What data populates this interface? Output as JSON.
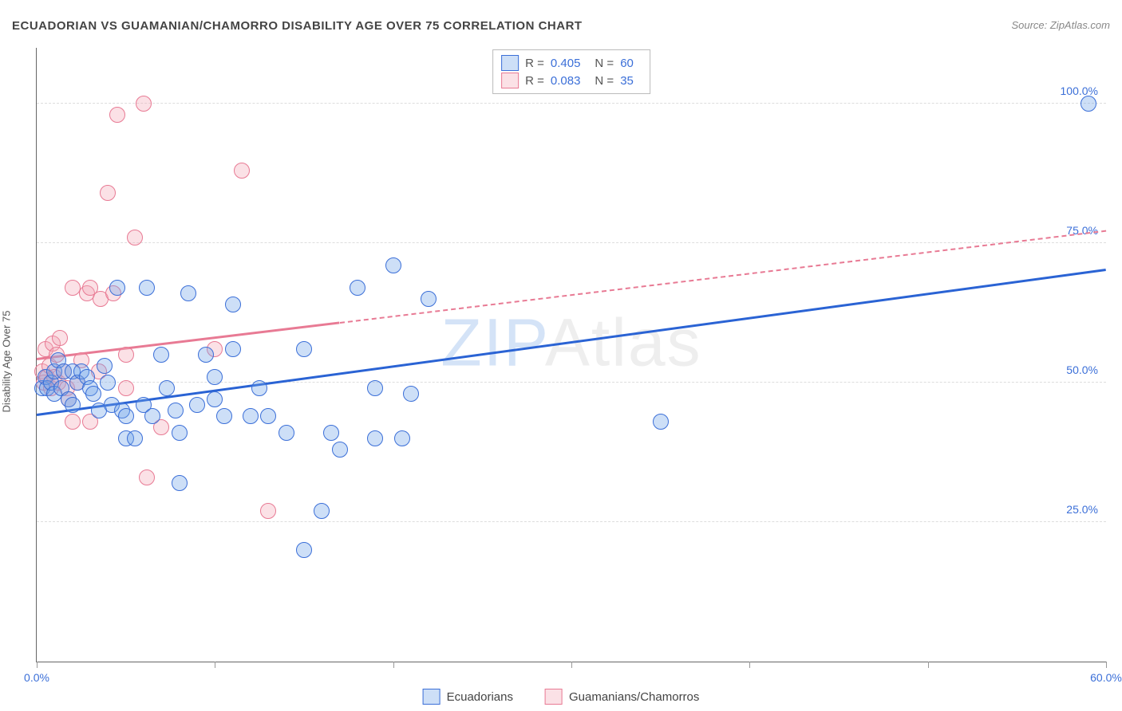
{
  "title": "ECUADORIAN VS GUAMANIAN/CHAMORRO DISABILITY AGE OVER 75 CORRELATION CHART",
  "source_label": "Source: ",
  "source_name": "ZipAtlas.com",
  "y_axis_label": "Disability Age Over 75",
  "watermark_a": "ZIP",
  "watermark_b": "Atlas",
  "chart": {
    "type": "scatter",
    "xlim": [
      0,
      60
    ],
    "ylim": [
      0,
      110
    ],
    "x_ticks": [
      0,
      10,
      20,
      30,
      40,
      50,
      60
    ],
    "x_tick_labels": {
      "0": "0.0%",
      "60": "60.0%"
    },
    "y_gridlines": [
      25,
      50,
      75,
      100
    ],
    "y_tick_labels": {
      "25": "25.0%",
      "50": "50.0%",
      "75": "75.0%",
      "100": "100.0%"
    },
    "background_color": "#ffffff",
    "grid_color": "#dddddd",
    "axis_color": "#666666",
    "tick_label_color": "#3b6fd8",
    "marker_radius": 9,
    "marker_opacity": 0.55,
    "marker_border_opacity": 0.9
  },
  "series": [
    {
      "name": "Ecuadorians",
      "color": "#6fa3e8",
      "border_color": "#3b6fd8",
      "fill_color": "rgba(111,163,232,0.35)",
      "stats": {
        "R": "0.405",
        "N": "60"
      },
      "trend": {
        "x1": 0,
        "y1": 44,
        "x2": 60,
        "y2": 70,
        "solid_until_x": 60,
        "line_color": "#2a63d4"
      },
      "points": [
        [
          0.3,
          49
        ],
        [
          0.5,
          51
        ],
        [
          0.6,
          49
        ],
        [
          0.8,
          50
        ],
        [
          1,
          48
        ],
        [
          1,
          52
        ],
        [
          1.2,
          54
        ],
        [
          1.4,
          49
        ],
        [
          1.5,
          52
        ],
        [
          1.8,
          47
        ],
        [
          2,
          52
        ],
        [
          2,
          46
        ],
        [
          2.3,
          50
        ],
        [
          2.5,
          52
        ],
        [
          2.8,
          51
        ],
        [
          3,
          49
        ],
        [
          3.2,
          48
        ],
        [
          3.5,
          45
        ],
        [
          3.8,
          53
        ],
        [
          4,
          50
        ],
        [
          4.2,
          46
        ],
        [
          4.5,
          67
        ],
        [
          4.8,
          45
        ],
        [
          5,
          44
        ],
        [
          5,
          40
        ],
        [
          5.5,
          40
        ],
        [
          6,
          46
        ],
        [
          6.2,
          67
        ],
        [
          6.5,
          44
        ],
        [
          7,
          55
        ],
        [
          7.3,
          49
        ],
        [
          7.8,
          45
        ],
        [
          8,
          41
        ],
        [
          8,
          32
        ],
        [
          8.5,
          66
        ],
        [
          9,
          46
        ],
        [
          9.5,
          55
        ],
        [
          10,
          47
        ],
        [
          10,
          51
        ],
        [
          10.5,
          44
        ],
        [
          11,
          64
        ],
        [
          11,
          56
        ],
        [
          12,
          44
        ],
        [
          12.5,
          49
        ],
        [
          13,
          44
        ],
        [
          14,
          41
        ],
        [
          15,
          56
        ],
        [
          15,
          20
        ],
        [
          16,
          27
        ],
        [
          16.5,
          41
        ],
        [
          17,
          38
        ],
        [
          18,
          67
        ],
        [
          19,
          40
        ],
        [
          19,
          49
        ],
        [
          20,
          71
        ],
        [
          20.5,
          40
        ],
        [
          21,
          48
        ],
        [
          22,
          65
        ],
        [
          35,
          43
        ],
        [
          59,
          100
        ]
      ]
    },
    {
      "name": "Guamanians/Chamorros",
      "color": "#f4a9b8",
      "border_color": "#e87a94",
      "fill_color": "rgba(244,169,184,0.35)",
      "stats": {
        "R": "0.083",
        "N": "35"
      },
      "trend": {
        "x1": 0,
        "y1": 54,
        "x2": 60,
        "y2": 77,
        "solid_until_x": 17,
        "line_color": "#e87a94"
      },
      "points": [
        [
          0.3,
          52
        ],
        [
          0.4,
          50
        ],
        [
          0.5,
          56
        ],
        [
          0.6,
          51
        ],
        [
          0.7,
          53
        ],
        [
          0.8,
          49
        ],
        [
          0.9,
          57
        ],
        [
          1,
          51
        ],
        [
          1.1,
          55
        ],
        [
          1.2,
          50
        ],
        [
          1.3,
          58
        ],
        [
          1.5,
          52
        ],
        [
          1.7,
          49
        ],
        [
          1.8,
          47
        ],
        [
          2,
          67
        ],
        [
          2,
          43
        ],
        [
          2.3,
          50
        ],
        [
          2.5,
          54
        ],
        [
          2.8,
          66
        ],
        [
          3,
          67
        ],
        [
          3,
          43
        ],
        [
          3.5,
          52
        ],
        [
          3.6,
          65
        ],
        [
          4,
          84
        ],
        [
          4.3,
          66
        ],
        [
          4.5,
          98
        ],
        [
          5,
          55
        ],
        [
          5,
          49
        ],
        [
          5.5,
          76
        ],
        [
          6,
          100
        ],
        [
          6.2,
          33
        ],
        [
          7,
          42
        ],
        [
          10,
          56
        ],
        [
          11.5,
          88
        ],
        [
          13,
          27
        ]
      ]
    }
  ],
  "stats_box": {
    "r_label": "R =",
    "n_label": "N ="
  },
  "bottom_legend": {
    "items": [
      "Ecuadorians",
      "Guamanians/Chamorros"
    ]
  }
}
